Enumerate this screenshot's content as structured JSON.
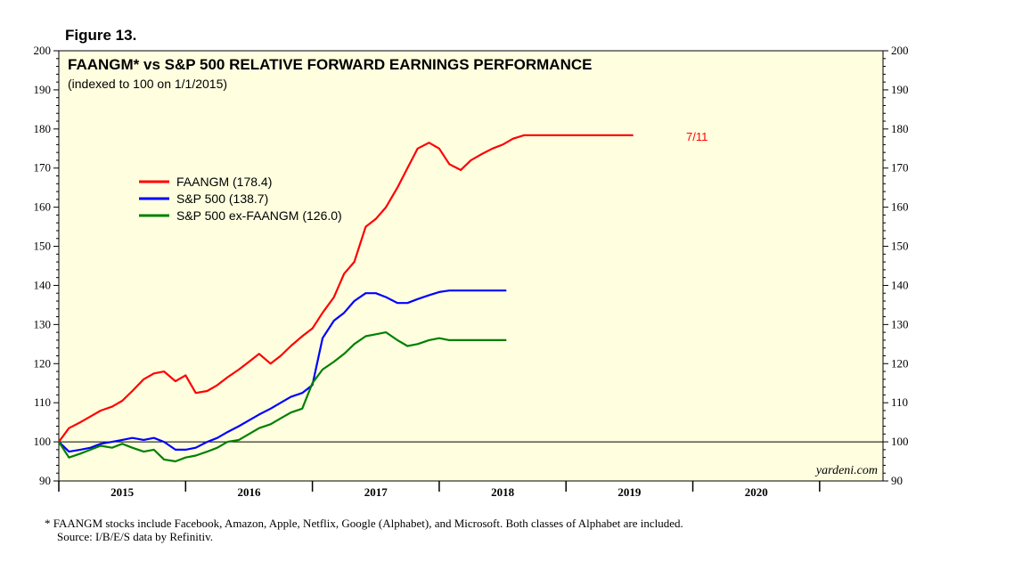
{
  "figure_label": "Figure 13.",
  "footnote": {
    "line1": "*   FAANGM stocks include Facebook, Amazon, Apple, Netflix, Google (Alphabet), and Microsoft. Both classes of Alphabet are included.",
    "line2": "Source: I/B/E/S data by Refinitiv."
  },
  "chart_data": {
    "type": "line",
    "title": "FAANGM* vs S&P 500 RELATIVE FORWARD EARNINGS PERFORMANCE",
    "subtitle": "(indexed to 100 on 1/1/2015)",
    "watermark": "yardeni.com",
    "end_label": "7/11",
    "xlabel": "",
    "ylabel": "",
    "ylim": [
      90,
      200
    ],
    "xlim": [
      2014.5,
      2021.0
    ],
    "y_ticks": [
      "90",
      "100",
      "110",
      "120",
      "130",
      "140",
      "150",
      "160",
      "170",
      "180",
      "190",
      "200"
    ],
    "x_tick_labels": [
      {
        "x": 2015.0,
        "label": "2015"
      },
      {
        "x": 2016.0,
        "label": "2016"
      },
      {
        "x": 2017.0,
        "label": "2017"
      },
      {
        "x": 2018.0,
        "label": "2018"
      },
      {
        "x": 2019.0,
        "label": "2019"
      },
      {
        "x": 2020.0,
        "label": "2020"
      }
    ],
    "reference_line": 100,
    "legend": [
      "FAANGM (178.4)",
      "S&P 500 (138.7)",
      "S&P 500 ex-FAANGM (126.0)"
    ],
    "legend_position": "upper-left",
    "series": [
      {
        "name": "FAANGM",
        "color": "#ff0000",
        "x": [
          2014.5,
          2014.58,
          2014.67,
          2014.75,
          2014.83,
          2014.92,
          2015.0,
          2015.08,
          2015.17,
          2015.25,
          2015.33,
          2015.42,
          2015.5,
          2015.58,
          2015.67,
          2015.75,
          2015.83,
          2015.92,
          2016.0,
          2016.08,
          2016.17,
          2016.25,
          2016.33,
          2016.42,
          2016.5,
          2016.58,
          2016.67,
          2016.75,
          2016.83,
          2016.92,
          2017.0,
          2017.08,
          2017.17,
          2017.25,
          2017.33,
          2017.42,
          2017.5,
          2017.58,
          2017.67,
          2017.75,
          2017.83,
          2017.92,
          2018.0,
          2018.08,
          2018.17,
          2018.25,
          2018.33,
          2018.42,
          2018.5,
          2018.58,
          2018.67,
          2018.75,
          2018.83,
          2018.92,
          2019.0,
          2019.03
        ],
        "values": [
          100,
          103.5,
          105,
          106.5,
          108,
          109,
          110.5,
          113,
          116,
          117.5,
          118,
          115.5,
          117,
          112.5,
          113,
          114.5,
          116.5,
          118.5,
          120.5,
          122.5,
          120,
          122,
          124.5,
          127,
          129,
          133,
          137,
          143,
          146,
          155,
          157,
          160,
          165,
          170,
          175,
          176.5,
          175,
          171,
          169.5,
          172,
          173.5,
          175,
          176,
          177.5,
          178.4,
          178.4,
          178.4,
          178.4,
          178.4,
          178.4,
          178.4,
          178.4,
          178.4,
          178.4,
          178.4,
          178.4
        ]
      },
      {
        "name": "S&P 500",
        "color": "#0000ff",
        "x": [
          2014.5,
          2014.58,
          2014.67,
          2014.75,
          2014.83,
          2014.92,
          2015.0,
          2015.08,
          2015.17,
          2015.25,
          2015.33,
          2015.42,
          2015.5,
          2015.58,
          2015.67,
          2015.75,
          2015.83,
          2015.92,
          2016.0,
          2016.08,
          2016.17,
          2016.25,
          2016.33,
          2016.42,
          2016.5,
          2016.58,
          2016.67,
          2016.75,
          2016.83,
          2016.92,
          2017.0,
          2017.08,
          2017.17,
          2017.25,
          2017.33,
          2017.42,
          2017.5,
          2017.58,
          2017.67,
          2017.75,
          2017.83,
          2017.92,
          2018.0,
          2018.03
        ],
        "values": [
          100,
          97.5,
          98,
          98.5,
          99.5,
          100,
          100.5,
          101,
          100.5,
          101,
          100,
          98,
          98,
          98.5,
          100,
          101,
          102.5,
          104,
          105.5,
          107,
          108.5,
          110,
          111.5,
          112.5,
          114.5,
          126.5,
          131,
          133,
          136,
          138,
          138,
          137,
          135.5,
          135.5,
          136.5,
          137.5,
          138.3,
          138.7,
          138.7,
          138.7,
          138.7,
          138.7,
          138.7,
          138.7
        ]
      },
      {
        "name": "S&P 500 ex-FAANGM",
        "color": "#008000",
        "x": [
          2014.5,
          2014.58,
          2014.67,
          2014.75,
          2014.83,
          2014.92,
          2015.0,
          2015.08,
          2015.17,
          2015.25,
          2015.33,
          2015.42,
          2015.5,
          2015.58,
          2015.67,
          2015.75,
          2015.83,
          2015.92,
          2016.0,
          2016.08,
          2016.17,
          2016.25,
          2016.33,
          2016.42,
          2016.5,
          2016.58,
          2016.67,
          2016.75,
          2016.83,
          2016.92,
          2017.0,
          2017.08,
          2017.17,
          2017.25,
          2017.33,
          2017.42,
          2017.5,
          2017.58,
          2017.67,
          2017.75,
          2017.83,
          2017.92,
          2018.0,
          2018.03
        ],
        "values": [
          100,
          96,
          97,
          98,
          99,
          98.5,
          99.5,
          98.5,
          97.5,
          98,
          95.5,
          95,
          96,
          96.5,
          97.5,
          98.5,
          100,
          100.5,
          102,
          103.5,
          104.5,
          106,
          107.5,
          108.5,
          115,
          118.5,
          120.5,
          122.5,
          125,
          127,
          127.5,
          128,
          126,
          124.5,
          125,
          126,
          126.5,
          126,
          126,
          126,
          126,
          126,
          126,
          126
        ]
      }
    ]
  }
}
